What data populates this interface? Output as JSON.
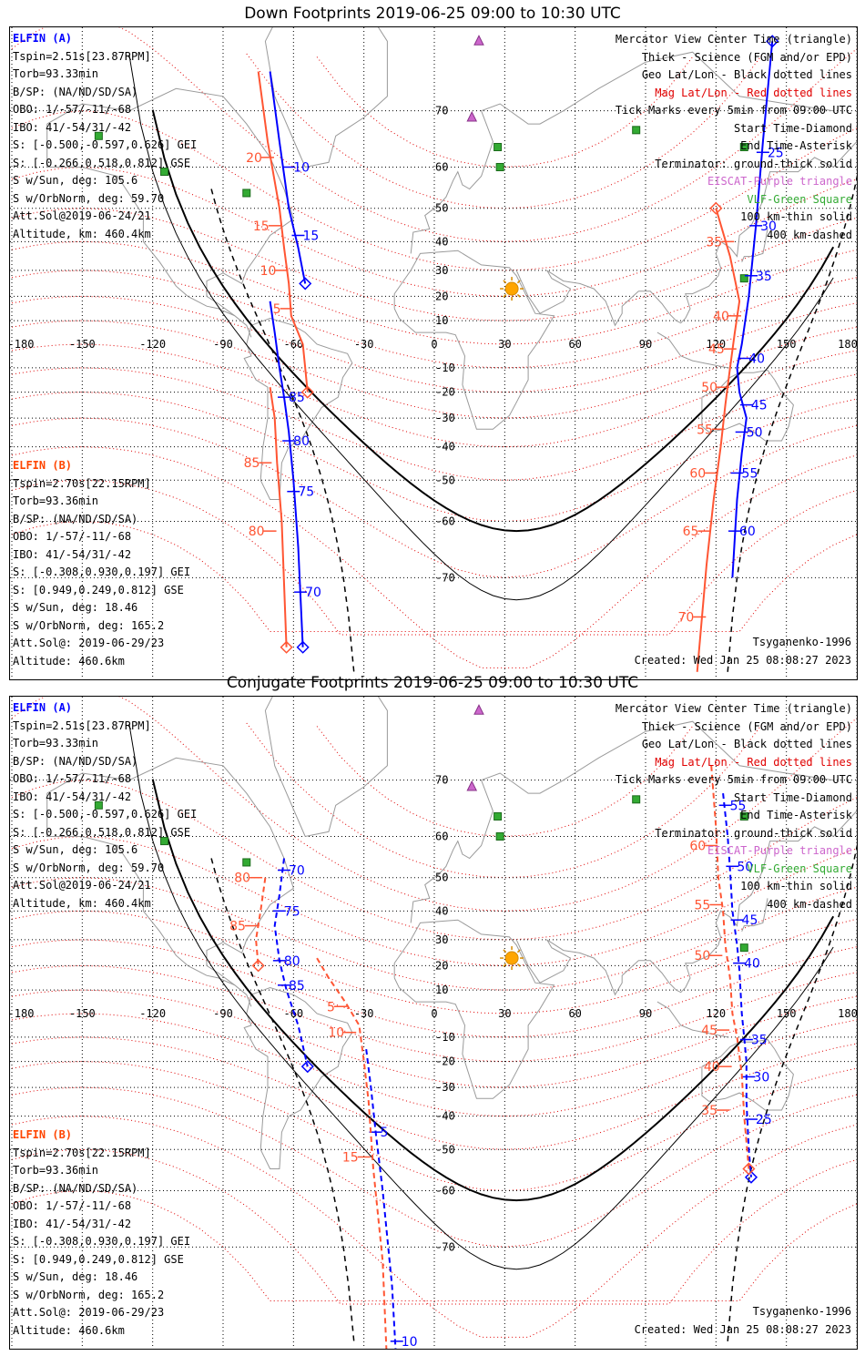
{
  "panels": [
    {
      "title": "Down Footprints 2019-06-25 09:00 to 10:30 UTC",
      "elfin_a": {
        "header": "ELFIN (A)",
        "lines": [
          "Tspin=2.51s[23.87RPM]",
          "Torb=93.33min",
          "B/SP: (NA/ND/SD/SA)",
          "OBO: 1/-57/-11/-68",
          "IBO: 41/-54/31/-42",
          "S: [-0.500,-0.597,0.626] GEI",
          "S: [-0.266,0.518,0.812] GSE",
          "S w/Sun, deg: 105.6",
          "S w/OrbNorm, deg: 59.70",
          "Att.Sol@2019-06-24/21",
          "Altitude, km: 460.4km"
        ]
      },
      "elfin_b": {
        "header": "ELFIN (B)",
        "lines": [
          "Tspin=2.70s[22.15RPM]",
          "Torb=93.36min",
          "B/SP: (NA/ND/SD/SA)",
          "OBO: 1/-57/-11/-68",
          "IBO: 41/-54/31/-42",
          "S: [-0.308,0.930,0.197] GEI",
          "S: [0.949,0.249,0.812] GSE",
          "S w/Sun, deg: 18.46",
          "S w/OrbNorm, deg: 165.2",
          "Att.Sol@: 2019-06-29/23",
          "Altitude: 460.6km"
        ]
      },
      "model": "Tsyganenko-1996",
      "created": "Created: Wed Jan 25 08:08:27 2023",
      "tracks": {
        "a": [
          {
            "points": [
              [
                -70,
                75
              ],
              [
                -66,
                65
              ],
              [
                -62,
                50
              ],
              [
                -58,
                38
              ],
              [
                -55,
                25
              ]
            ],
            "label_values": [
              10,
              15
            ],
            "label_points": [
              [
                -62,
                60
              ],
              [
                -58,
                42
              ]
            ]
          },
          {
            "points": [
              [
                127,
                -70
              ],
              [
                129,
                -55
              ],
              [
                131,
                -42
              ],
              [
                133,
                -30
              ],
              [
                130,
                -20
              ],
              [
                129,
                -10
              ],
              [
                131,
                0
              ],
              [
                134,
                20
              ],
              [
                137,
                45
              ],
              [
                140,
                65
              ],
              [
                144,
                78
              ]
            ],
            "label_values": [
              60,
              55,
              50,
              45,
              40,
              35,
              30,
              25
            ],
            "label_points": [
              [
                128,
                -62
              ],
              [
                129,
                -48
              ],
              [
                131,
                -35
              ],
              [
                133,
                -25
              ],
              [
                132,
                -6
              ],
              [
                135,
                28
              ],
              [
                137,
                45
              ],
              [
                140,
                63
              ]
            ]
          },
          {
            "points": [
              [
                -70,
                18
              ],
              [
                -68,
                5
              ],
              [
                -66,
                -10
              ],
              [
                -64,
                -22
              ],
              [
                -62,
                -35
              ],
              [
                -60,
                -50
              ],
              [
                -58,
                -65
              ],
              [
                -56,
                -78
              ]
            ],
            "label_values": [
              85,
              80,
              75,
              70
            ],
            "label_points": [
              [
                -64,
                -22
              ],
              [
                -62,
                -38
              ],
              [
                -60,
                -53
              ],
              [
                -57,
                -72
              ]
            ]
          }
        ],
        "b": [
          {
            "points": [
              [
                -75,
                75
              ],
              [
                -71,
                65
              ],
              [
                -66,
                50
              ],
              [
                -64,
                38
              ],
              [
                -62,
                25
              ],
              [
                -61,
                12
              ],
              [
                -56,
                0
              ],
              [
                -55,
                -10
              ],
              [
                -54,
                -20
              ]
            ],
            "label_values": [
              20,
              15,
              10,
              5
            ],
            "label_points": [
              [
                -71,
                62
              ],
              [
                -68,
                45
              ],
              [
                -65,
                30
              ],
              [
                -63,
                15
              ]
            ]
          },
          {
            "points": [
              [
                112,
                -80
              ],
              [
                116,
                -68
              ],
              [
                119,
                -55
              ],
              [
                122,
                -40
              ],
              [
                124,
                -25
              ],
              [
                126,
                -10
              ],
              [
                128,
                5
              ],
              [
                130,
                18
              ],
              [
                126,
                35
              ],
              [
                120,
                50
              ]
            ],
            "label_values": [
              70,
              65,
              60,
              55,
              50,
              45,
              40,
              35
            ],
            "label_points": [
              [
                113,
                -75
              ],
              [
                115,
                -62
              ],
              [
                118,
                -48
              ],
              [
                121,
                -34
              ],
              [
                123,
                -18
              ],
              [
                126,
                -2
              ],
              [
                128,
                12
              ],
              [
                125,
                40
              ]
            ]
          },
          {
            "points": [
              [
                -70,
                -18
              ],
              [
                -68,
                -30
              ],
              [
                -67,
                -45
              ],
              [
                -65,
                -60
              ],
              [
                -63,
                -78
              ]
            ],
            "label_values": [
              85,
              80
            ],
            "label_points": [
              [
                -72,
                -45
              ],
              [
                -70,
                -62
              ]
            ]
          }
        ]
      },
      "line_types": {
        "thick": "Thick - Science (FGM and/or EPD)"
      }
    },
    {
      "title": "Conjugate Footprints 2019-06-25 09:00 to 10:30 UTC",
      "elfin_a": {
        "header": "ELFIN (A)",
        "lines": [
          "Tspin=2.51s[23.87RPM]",
          "Torb=93.33min",
          "B/SP: (NA/ND/SD/SA)",
          "OBO: 1/-57/-11/-68",
          "IBO: 41/-54/31/-42",
          "S: [-0.500,-0.597,0.626] GEI",
          "S: [-0.266,0.518,0.812] GSE",
          "S w/Sun, deg: 105.6",
          "S w/OrbNorm, deg: 59.70",
          "Att.Sol@2019-06-24/21",
          "Altitude, km: 460.4km"
        ]
      },
      "elfin_b": {
        "header": "ELFIN (B)",
        "lines": [
          "Tspin=2.70s[22.15RPM]",
          "Torb=93.36min",
          "B/SP: (NA/ND/SD/SA)",
          "OBO: 1/-57/-11/-68",
          "IBO: 41/-54/31/-42",
          "S: [-0.308,0.930,0.197] GEI",
          "S: [0.949,0.249,0.812] GSE",
          "S w/Sun, deg: 18.46",
          "S w/OrbNorm, deg: 165.2",
          "Att.Sol@: 2019-06-29/23",
          "Altitude: 460.6km"
        ]
      },
      "model": "Tsyganenko-1996",
      "created": "Created: Wed Jan 25 08:08:27 2023",
      "tracks": {
        "a": [
          {
            "points": [
              [
                -64,
                55
              ],
              [
                -66,
                45
              ],
              [
                -68,
                35
              ],
              [
                -66,
                22
              ],
              [
                -63,
                10
              ],
              [
                -58,
                -5
              ],
              [
                -54,
                -22
              ]
            ],
            "label_values": [
              70,
              75,
              80,
              85
            ],
            "label_points": [
              [
                -64,
                52
              ],
              [
                -66,
                40
              ],
              [
                -66,
                22
              ],
              [
                -64,
                12
              ]
            ]
          },
          {
            "points": [
              [
                -29,
                -15
              ],
              [
                -27,
                -30
              ],
              [
                -25,
                -45
              ],
              [
                -22,
                -60
              ],
              [
                -18,
                -75
              ],
              [
                -16,
                -82
              ]
            ],
            "label_values": [
              5,
              10
            ],
            "label_points": [
              [
                -25,
                -45
              ],
              [
                -16,
                -80
              ]
            ]
          },
          {
            "points": [
              [
                123,
                68
              ],
              [
                125,
                60
              ],
              [
                126,
                52
              ],
              [
                127,
                40
              ],
              [
                129,
                28
              ],
              [
                130,
                18
              ],
              [
                131,
                0
              ],
              [
                132,
                -10
              ],
              [
                133,
                -20
              ],
              [
                133,
                -35
              ],
              [
                134,
                -50
              ],
              [
                135,
                -57
              ]
            ],
            "label_values": [
              55,
              50,
              45,
              40,
              35,
              30,
              25
            ],
            "label_points": [
              [
                124,
                66
              ],
              [
                127,
                53
              ],
              [
                129,
                37
              ],
              [
                130,
                21
              ],
              [
                133,
                -11
              ],
              [
                134,
                -26
              ],
              [
                135,
                -41
              ]
            ]
          }
        ],
        "b": [
          {
            "points": [
              [
                -50,
                23
              ],
              [
                -45,
                15
              ],
              [
                -38,
                5
              ],
              [
                -32,
                -5
              ],
              [
                -30,
                -20
              ],
              [
                -28,
                -35
              ],
              [
                -26,
                -55
              ],
              [
                -22,
                -72
              ],
              [
                -20,
                -82
              ]
            ],
            "label_values": [
              5,
              10,
              15
            ],
            "label_points": [
              [
                -40,
                3
              ],
              [
                -36,
                -8
              ],
              [
                -30,
                -52
              ]
            ]
          },
          {
            "points": [
              [
                -72,
                50
              ],
              [
                -74,
                40
              ],
              [
                -76,
                30
              ],
              [
                -75,
                20
              ]
            ],
            "label_values": [
              80,
              85
            ],
            "label_points": [
              [
                -76,
                50
              ],
              [
                -78,
                35
              ]
            ]
          },
          {
            "points": [
              [
                118,
                72
              ],
              [
                120,
                62
              ],
              [
                121,
                50
              ],
              [
                123,
                40
              ],
              [
                124,
                28
              ],
              [
                126,
                15
              ],
              [
                127,
                0
              ],
              [
                129,
                -10
              ],
              [
                131,
                -25
              ],
              [
                132,
                -40
              ],
              [
                134,
                -55
              ]
            ],
            "label_values": [
              60,
              55,
              50,
              45,
              40,
              35
            ],
            "label_points": [
              [
                118,
                58
              ],
              [
                120,
                42
              ],
              [
                120,
                24
              ],
              [
                123,
                -7
              ],
              [
                124,
                -22
              ],
              [
                123,
                -38
              ]
            ]
          }
        ]
      }
    }
  ],
  "legend": [
    {
      "text": "Mercator View Center Time (triangle)",
      "color": "#000000"
    },
    {
      "text": "Thick - Science (FGM and/or EPD)",
      "color": "#000000"
    },
    {
      "text": "Geo Lat/Lon - Black dotted lines",
      "color": "#000000"
    },
    {
      "text": "Mag Lat/Lon - Red dotted lines",
      "color": "#e00000"
    },
    {
      "text": "Tick Marks every 5min from 09:00 UTC",
      "color": "#000000"
    },
    {
      "text": "Start Time-Diamond",
      "color": "#000000"
    },
    {
      "text": "End Time-Asterisk",
      "color": "#000000"
    },
    {
      "text": "Terminator: ground-thick solid",
      "color": "#000000"
    },
    {
      "text": "EISCAT-Purple triangle",
      "color": "#cc66cc"
    },
    {
      "text": "VLF-Green Square",
      "color": "#33aa33"
    },
    {
      "text": "100 km-thin solid",
      "color": "#000000"
    },
    {
      "text": "400 km-dashed",
      "color": "#000000"
    }
  ],
  "axes": {
    "lon_ticks": [
      -180,
      -150,
      -120,
      -90,
      -60,
      -30,
      0,
      30,
      60,
      90,
      120,
      150,
      180
    ],
    "lon_labels": [
      "-180",
      "-150",
      "-120",
      "-90",
      "-60",
      "-30",
      "0",
      "30",
      "60",
      "90",
      "120",
      "150",
      "180"
    ],
    "lat_ticks": [
      70,
      60,
      50,
      40,
      30,
      20,
      10,
      -10,
      -20,
      -30,
      -40,
      -50,
      -60,
      -70
    ],
    "lat_labels": [
      "70",
      "60",
      "50",
      "40",
      "30",
      "20",
      "10",
      "-10",
      "-20",
      "-30",
      "-40",
      "-50",
      "-60",
      "-70"
    ]
  },
  "markers": {
    "sun": [
      33,
      23
    ],
    "eiscat": [
      [
        16,
        69
      ],
      [
        19,
        78
      ]
    ],
    "vlf": [
      [
        27,
        64
      ],
      [
        28,
        60
      ],
      [
        -80,
        54
      ],
      [
        -115,
        59
      ],
      [
        -143,
        66
      ],
      [
        86,
        67
      ],
      [
        132,
        64
      ],
      [
        132,
        27
      ]
    ]
  },
  "colors": {
    "elfin_a": "#0000ff",
    "elfin_b": "#ff5533",
    "mag_grid": "#e00000",
    "geo_grid": "#000000",
    "eiscat": "#cc66cc",
    "vlf": "#33aa33",
    "sun": "#ffa500"
  }
}
